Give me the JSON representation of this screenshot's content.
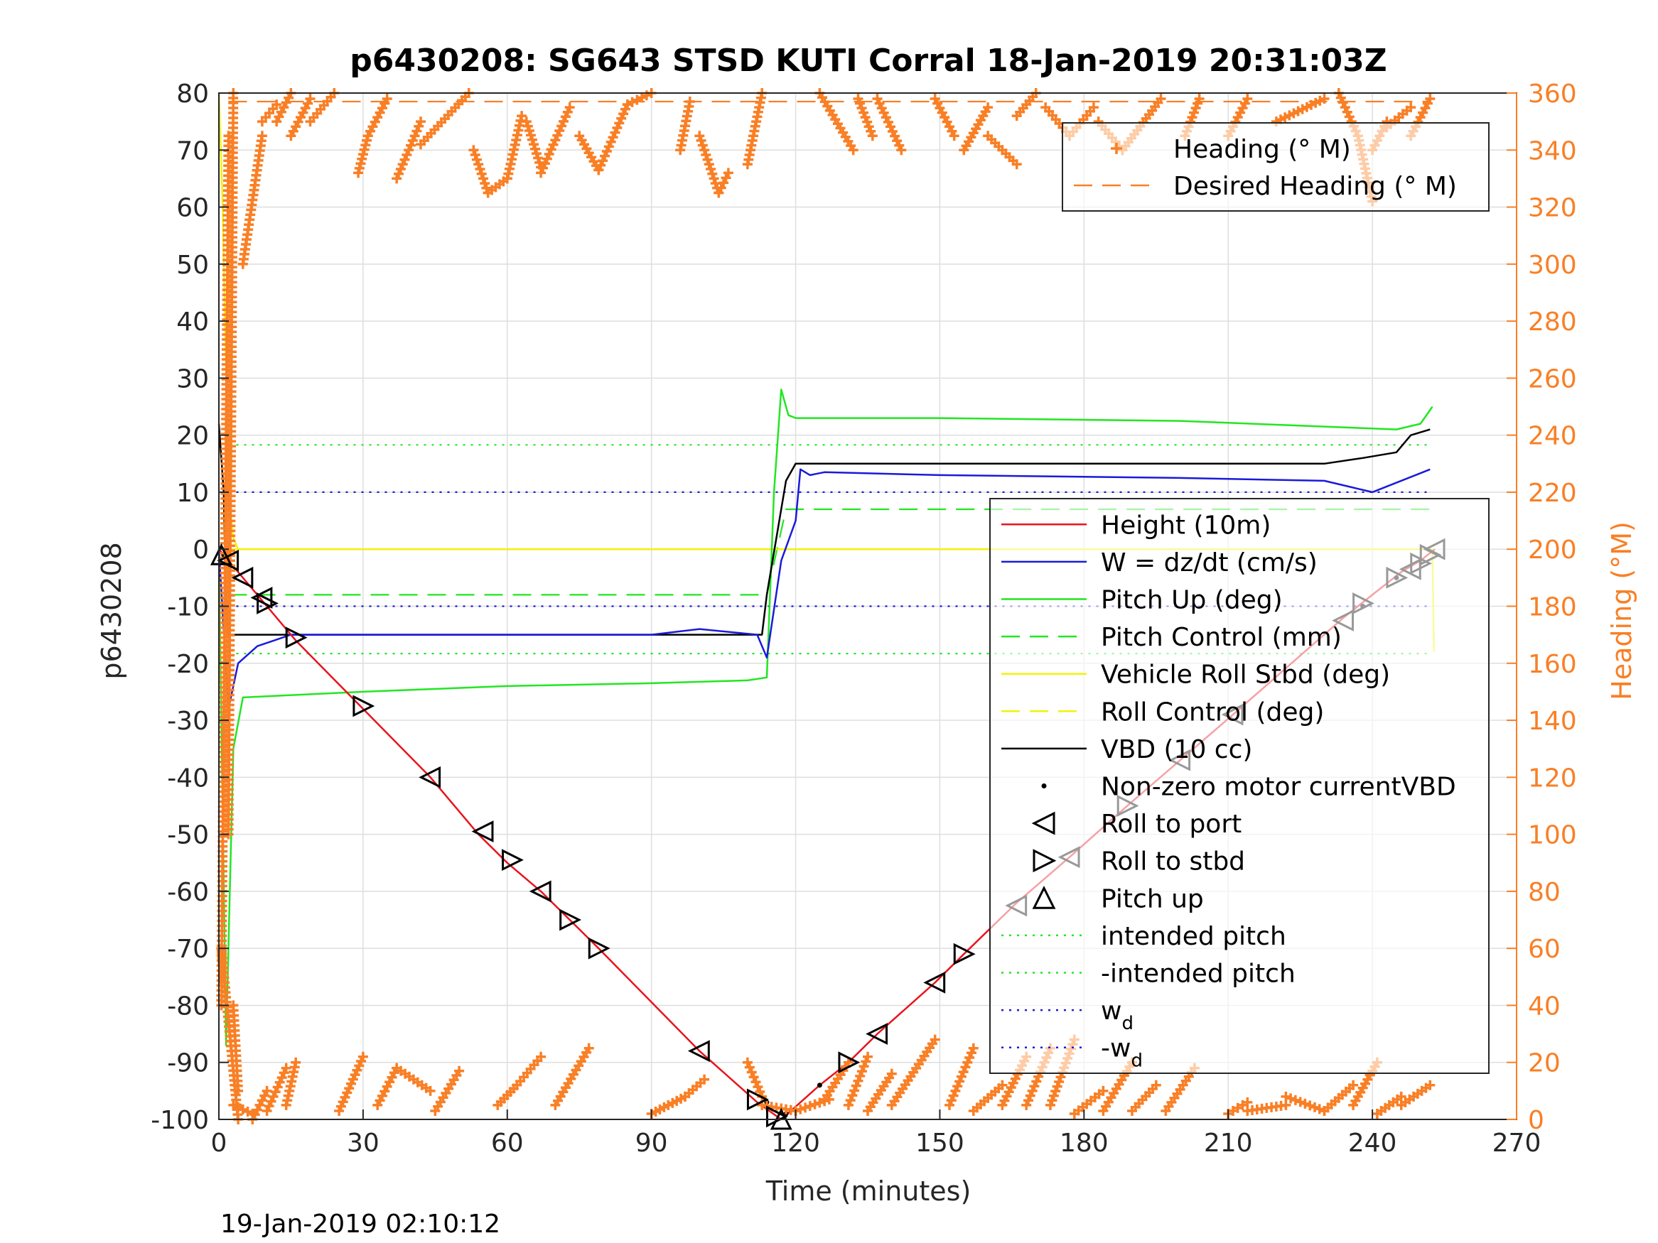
{
  "chart_data": {
    "type": "line",
    "title": "p6430208: SG643 STSD KUTI Corral 18-Jan-2019 20:31:03Z",
    "xlabel": "Time (minutes)",
    "ylabel": "p6430208",
    "y2label": "Heading (°M)",
    "xlim": [
      0,
      270
    ],
    "ylim": [
      -100,
      80
    ],
    "y2lim": [
      0,
      360
    ],
    "xticks": [
      0,
      30,
      60,
      90,
      120,
      150,
      180,
      210,
      240,
      270
    ],
    "yticks": [
      -100,
      -90,
      -80,
      -70,
      -60,
      -50,
      -40,
      -30,
      -20,
      -10,
      0,
      10,
      20,
      30,
      40,
      50,
      60,
      70,
      80
    ],
    "y2ticks": [
      0,
      20,
      40,
      60,
      80,
      100,
      120,
      140,
      160,
      180,
      200,
      220,
      240,
      260,
      280,
      300,
      320,
      340,
      360
    ],
    "grid": true,
    "footer": "19-Jan-2019 02:10:12",
    "colors": {
      "heading": "#f97f25",
      "height": "#e8141e",
      "w": "#1a1adb",
      "pitch": "#22e622",
      "roll": "#f2f20a",
      "vbd": "#000000",
      "axis": "#262626",
      "grid": "#dedede"
    },
    "legend_top": {
      "position": "top-right",
      "entries": [
        {
          "label": "Heading (° M)",
          "style": "plus",
          "color": "#f97f25"
        },
        {
          "label": "Desired Heading (° M)",
          "style": "dash",
          "color": "#f97f25"
        }
      ]
    },
    "legend_main": {
      "position": "right",
      "entries": [
        {
          "label": "Height (10m)",
          "style": "solid",
          "color": "#e8141e"
        },
        {
          "label": "W = dz/dt (cm/s)",
          "style": "solid",
          "color": "#1a1adb"
        },
        {
          "label": "Pitch Up (deg)",
          "style": "solid",
          "color": "#22e622"
        },
        {
          "label": "Pitch Control (mm)",
          "style": "dash",
          "color": "#22e622"
        },
        {
          "label": "Vehicle Roll Stbd (deg)",
          "style": "solid",
          "color": "#f2f20a"
        },
        {
          "label": "Roll Control (deg)",
          "style": "dash",
          "color": "#f2f20a"
        },
        {
          "label": "VBD (10 cc)",
          "style": "solid",
          "color": "#000000"
        },
        {
          "label": "Non-zero motor currentVBD",
          "style": "dot",
          "color": "#000000"
        },
        {
          "label": "Roll to port",
          "style": "tri-left",
          "color": "#000000"
        },
        {
          "label": "Roll to stbd",
          "style": "tri-right",
          "color": "#000000"
        },
        {
          "label": "Pitch up",
          "style": "tri-up",
          "color": "#000000"
        },
        {
          "label": "intended pitch",
          "style": "dotted",
          "color": "#22e622"
        },
        {
          "label": "-intended pitch",
          "style": "dotted",
          "color": "#22e622"
        },
        {
          "label": "w",
          "sub": "d",
          "style": "dotted",
          "color": "#1a1adb"
        },
        {
          "label": "-w",
          "sub": "d",
          "style": "dotted",
          "color": "#1a1adb"
        }
      ]
    },
    "series": [
      {
        "name": "Height (10m)",
        "axis": "left",
        "style": "solid",
        "color": "#e8141e",
        "x": [
          0,
          5,
          16,
          30,
          44,
          54,
          60,
          67,
          73,
          79,
          100,
          112,
          117,
          125,
          131,
          137,
          149,
          155,
          166,
          177,
          189,
          200,
          211,
          234,
          240,
          246,
          250,
          253
        ],
        "y": [
          0,
          -5,
          -16,
          -28,
          -40,
          -50,
          -55,
          -60,
          -65,
          -70,
          -88,
          -97,
          -100,
          -94,
          -90,
          -85,
          -76,
          -71,
          -62,
          -54,
          -45,
          -37,
          -29,
          -12,
          -8,
          -4,
          -2,
          0
        ]
      },
      {
        "name": "W = dz/dt (cm/s)",
        "axis": "left",
        "style": "solid",
        "color": "#1a1adb",
        "x": [
          0,
          2,
          4,
          8,
          15,
          30,
          60,
          90,
          100,
          112,
          114,
          117,
          120,
          121,
          123,
          126,
          150,
          200,
          230,
          240,
          252
        ],
        "y": [
          0,
          -28,
          -20,
          -17,
          -15,
          -15,
          -15,
          -15,
          -14,
          -15,
          -19,
          -2,
          5,
          14,
          13,
          13.5,
          13,
          12.5,
          12,
          10,
          14
        ]
      },
      {
        "name": "Pitch Up (deg)",
        "axis": "left",
        "style": "solid",
        "color": "#22e622",
        "x": [
          0,
          1.5,
          3,
          5,
          30,
          60,
          90,
          110,
          114,
          115.5,
          117,
          118.5,
          120,
          150,
          200,
          245,
          250,
          252.5
        ],
        "y": [
          0,
          -87,
          -35,
          -26,
          -25,
          -24,
          -23.5,
          -23,
          -22.5,
          10,
          28,
          23.5,
          23,
          23,
          22.5,
          21,
          22,
          25
        ]
      },
      {
        "name": "Pitch Control (mm)",
        "axis": "left",
        "style": "dash",
        "color": "#22e622",
        "x": [
          2,
          114,
          118,
          252
        ],
        "y": [
          -8,
          -8,
          7,
          7
        ]
      },
      {
        "name": "Vehicle Roll Stbd (deg)",
        "axis": "left",
        "style": "solid",
        "color": "#f2f20a",
        "x": [
          0,
          0.8,
          2,
          3,
          4,
          6,
          30,
          60,
          90,
          113,
          115,
          118,
          150,
          200,
          230,
          250,
          252.5,
          252.8
        ],
        "y": [
          80,
          60,
          10,
          2,
          0,
          0,
          0,
          0,
          0,
          0,
          0,
          0,
          0,
          0,
          0,
          0,
          0,
          -18
        ]
      },
      {
        "name": "Roll Control (deg)",
        "axis": "left",
        "style": "dash",
        "color": "#f2f20a",
        "x": [
          2,
          252
        ],
        "y": [
          0,
          0
        ]
      },
      {
        "name": "VBD (10 cc)",
        "axis": "left",
        "style": "solid",
        "color": "#000000",
        "x": [
          0,
          1,
          1.5,
          2,
          113,
          114,
          118,
          120,
          150,
          200,
          230,
          238,
          245,
          248,
          252
        ],
        "y": [
          22,
          10,
          -10,
          -15,
          -15,
          -8,
          12,
          15,
          15,
          15,
          15,
          16,
          17,
          20,
          21
        ]
      },
      {
        "name": "intended pitch",
        "axis": "left",
        "style": "dotted",
        "color": "#22e622",
        "x": [
          2,
          252
        ],
        "y": [
          18.3,
          18.3
        ]
      },
      {
        "name": "-intended pitch",
        "axis": "left",
        "style": "dotted",
        "color": "#22e622",
        "x": [
          2,
          252
        ],
        "y": [
          -18.3,
          -18.3
        ]
      },
      {
        "name": "w_d",
        "axis": "left",
        "style": "dotted",
        "color": "#1a1adb",
        "x": [
          2,
          252
        ],
        "y": [
          10,
          10
        ]
      },
      {
        "name": "-w_d",
        "axis": "left",
        "style": "dotted",
        "color": "#1a1adb",
        "x": [
          2,
          252
        ],
        "y": [
          -10,
          -10
        ]
      },
      {
        "name": "Desired Heading (° M)",
        "axis": "right",
        "style": "dash",
        "color": "#f97f25",
        "x": [
          2,
          252
        ],
        "y": [
          357,
          357
        ]
      },
      {
        "name": "Non-zero motor currentVBD",
        "axis": "left",
        "style": "dot",
        "color": "#000000",
        "x": [
          1,
          114,
          118,
          125,
          238,
          245
        ],
        "y": [
          -1,
          -97,
          -99,
          -94,
          -10,
          -5
        ]
      }
    ],
    "heading_segments": [
      {
        "x0": 0.5,
        "x1": 2,
        "y0": 40,
        "y1": 345
      },
      {
        "x0": 2,
        "x1": 3,
        "y0": 100,
        "y1": 360
      },
      {
        "x0": 3,
        "x1": 4,
        "y0": 40,
        "y1": 10
      },
      {
        "x0": 5,
        "x1": 9,
        "y0": 300,
        "y1": 345
      },
      {
        "x0": 9,
        "x1": 12,
        "y0": 350,
        "y1": 356
      },
      {
        "x0": 12,
        "x1": 15,
        "y0": 350,
        "y1": 360
      },
      {
        "x0": 15,
        "x1": 19,
        "y0": 345,
        "y1": 358
      },
      {
        "x0": 19,
        "x1": 24,
        "y0": 350,
        "y1": 360
      },
      {
        "x0": 29,
        "x1": 31,
        "y0": 332,
        "y1": 345
      },
      {
        "x0": 31,
        "x1": 35,
        "y0": 345,
        "y1": 358
      },
      {
        "x0": 37,
        "x1": 42,
        "y0": 330,
        "y1": 350
      },
      {
        "x0": 42,
        "x1": 52,
        "y0": 342,
        "y1": 360
      },
      {
        "x0": 53,
        "x1": 56,
        "y0": 340,
        "y1": 325
      },
      {
        "x0": 56,
        "x1": 60,
        "y0": 325,
        "y1": 330
      },
      {
        "x0": 60,
        "x1": 63,
        "y0": 330,
        "y1": 352
      },
      {
        "x0": 64,
        "x1": 67,
        "y0": 350,
        "y1": 334
      },
      {
        "x0": 67,
        "x1": 73,
        "y0": 332,
        "y1": 355
      },
      {
        "x0": 75,
        "x1": 79,
        "y0": 345,
        "y1": 333
      },
      {
        "x0": 79,
        "x1": 85,
        "y0": 333,
        "y1": 356
      },
      {
        "x0": 85,
        "x1": 90,
        "y0": 356,
        "y1": 360
      },
      {
        "x0": 96,
        "x1": 98,
        "y0": 340,
        "y1": 357
      },
      {
        "x0": 100,
        "x1": 104,
        "y0": 345,
        "y1": 325
      },
      {
        "x0": 104,
        "x1": 106,
        "y0": 325,
        "y1": 332
      },
      {
        "x0": 110,
        "x1": 113,
        "y0": 335,
        "y1": 360
      },
      {
        "x0": 0.5,
        "x1": 4,
        "y0": 60,
        "y1": 0
      },
      {
        "x0": 3,
        "x1": 7,
        "y0": 5,
        "y1": 2
      },
      {
        "x0": 7,
        "x1": 10,
        "y0": 0,
        "y1": 10
      },
      {
        "x0": 10,
        "x1": 14,
        "y0": 3,
        "y1": 18
      },
      {
        "x0": 14,
        "x1": 16,
        "y0": 5,
        "y1": 20
      },
      {
        "x0": 25,
        "x1": 30,
        "y0": 3,
        "y1": 22
      },
      {
        "x0": 33,
        "x1": 37,
        "y0": 5,
        "y1": 18
      },
      {
        "x0": 37,
        "x1": 44,
        "y0": 18,
        "y1": 10
      },
      {
        "x0": 45,
        "x1": 50,
        "y0": 3,
        "y1": 17
      },
      {
        "x0": 58,
        "x1": 62,
        "y0": 5,
        "y1": 12
      },
      {
        "x0": 62,
        "x1": 67,
        "y0": 12,
        "y1": 22
      },
      {
        "x0": 70,
        "x1": 77,
        "y0": 5,
        "y1": 25
      },
      {
        "x0": 90,
        "x1": 97,
        "y0": 2,
        "y1": 8
      },
      {
        "x0": 97,
        "x1": 101,
        "y0": 8,
        "y1": 14
      },
      {
        "x0": 110,
        "x1": 113,
        "y0": 20,
        "y1": 8
      },
      {
        "x0": 113,
        "x1": 120,
        "y0": 5,
        "y1": 3
      },
      {
        "x0": 120,
        "x1": 127,
        "y0": 3,
        "y1": 7
      },
      {
        "x0": 126,
        "x1": 131,
        "y0": 7,
        "y1": 20
      },
      {
        "x0": 131,
        "x1": 135,
        "y0": 5,
        "y1": 22
      },
      {
        "x0": 135,
        "x1": 140,
        "y0": 3,
        "y1": 16
      },
      {
        "x0": 140,
        "x1": 149,
        "y0": 5,
        "y1": 28
      },
      {
        "x0": 152,
        "x1": 157,
        "y0": 5,
        "y1": 25
      },
      {
        "x0": 157,
        "x1": 163,
        "y0": 3,
        "y1": 12
      },
      {
        "x0": 163,
        "x1": 168,
        "y0": 5,
        "y1": 22
      },
      {
        "x0": 168,
        "x1": 173,
        "y0": 5,
        "y1": 25
      },
      {
        "x0": 173,
        "x1": 178,
        "y0": 5,
        "y1": 28
      },
      {
        "x0": 178,
        "x1": 184,
        "y0": 2,
        "y1": 10
      },
      {
        "x0": 184,
        "x1": 190,
        "y0": 3,
        "y1": 20
      },
      {
        "x0": 190,
        "x1": 195,
        "y0": 3,
        "y1": 12
      },
      {
        "x0": 197,
        "x1": 203,
        "y0": 3,
        "y1": 18
      },
      {
        "x0": 210,
        "x1": 214,
        "y0": 2,
        "y1": 6
      },
      {
        "x0": 214,
        "x1": 222,
        "y0": 3,
        "y1": 5
      },
      {
        "x0": 222,
        "x1": 230,
        "y0": 8,
        "y1": 3
      },
      {
        "x0": 230,
        "x1": 236,
        "y0": 3,
        "y1": 12
      },
      {
        "x0": 236,
        "x1": 241,
        "y0": 5,
        "y1": 20
      },
      {
        "x0": 241,
        "x1": 246,
        "y0": 2,
        "y1": 8
      },
      {
        "x0": 246,
        "x1": 252,
        "y0": 5,
        "y1": 12
      },
      {
        "x0": 125,
        "x1": 132,
        "y0": 360,
        "y1": 340
      },
      {
        "x0": 133,
        "x1": 136,
        "y0": 358,
        "y1": 345
      },
      {
        "x0": 137,
        "x1": 142,
        "y0": 358,
        "y1": 340
      },
      {
        "x0": 149,
        "x1": 153,
        "y0": 358,
        "y1": 345
      },
      {
        "x0": 155,
        "x1": 160,
        "y0": 340,
        "y1": 355
      },
      {
        "x0": 160,
        "x1": 166,
        "y0": 345,
        "y1": 335
      },
      {
        "x0": 166,
        "x1": 170,
        "y0": 352,
        "y1": 360
      },
      {
        "x0": 172,
        "x1": 177,
        "y0": 355,
        "y1": 345
      },
      {
        "x0": 177,
        "x1": 182,
        "y0": 345,
        "y1": 355
      },
      {
        "x0": 183,
        "x1": 188,
        "y0": 350,
        "y1": 340
      },
      {
        "x0": 188,
        "x1": 196,
        "y0": 340,
        "y1": 358
      },
      {
        "x0": 201,
        "x1": 204,
        "y0": 345,
        "y1": 358
      },
      {
        "x0": 210,
        "x1": 214,
        "y0": 345,
        "y1": 358
      },
      {
        "x0": 220,
        "x1": 230,
        "y0": 350,
        "y1": 358
      },
      {
        "x0": 233,
        "x1": 237,
        "y0": 360,
        "y1": 345
      },
      {
        "x0": 237,
        "x1": 240,
        "y0": 345,
        "y1": 322
      },
      {
        "x0": 240,
        "x1": 243,
        "y0": 340,
        "y1": 350
      },
      {
        "x0": 243,
        "x1": 248,
        "y0": 348,
        "y1": 355
      },
      {
        "x0": 248,
        "x1": 252,
        "y0": 345,
        "y1": 358
      }
    ],
    "markers": [
      {
        "x": 0.5,
        "y": -1,
        "type": "up"
      },
      {
        "x": 2,
        "y": -2,
        "type": "port"
      },
      {
        "x": 5,
        "y": -5,
        "type": "port"
      },
      {
        "x": 9,
        "y": -8.5,
        "type": "port"
      },
      {
        "x": 10,
        "y": -9.5,
        "type": "stbd"
      },
      {
        "x": 16,
        "y": -15.5,
        "type": "stbd"
      },
      {
        "x": 30,
        "y": -27.5,
        "type": "stbd"
      },
      {
        "x": 44,
        "y": -40,
        "type": "port"
      },
      {
        "x": 55,
        "y": -49.5,
        "type": "port"
      },
      {
        "x": 61,
        "y": -54.5,
        "type": "stbd"
      },
      {
        "x": 67,
        "y": -60,
        "type": "port"
      },
      {
        "x": 73,
        "y": -65,
        "type": "stbd"
      },
      {
        "x": 79,
        "y": -70,
        "type": "stbd"
      },
      {
        "x": 100,
        "y": -88,
        "type": "port"
      },
      {
        "x": 112,
        "y": -96.5,
        "type": "stbd"
      },
      {
        "x": 116,
        "y": -99.5,
        "type": "stbd"
      },
      {
        "x": 117,
        "y": -100,
        "type": "up"
      },
      {
        "x": 131,
        "y": -90,
        "type": "stbd"
      },
      {
        "x": 137,
        "y": -85,
        "type": "port"
      },
      {
        "x": 149,
        "y": -76,
        "type": "port"
      },
      {
        "x": 155,
        "y": -71,
        "type": "stbd"
      },
      {
        "x": 166,
        "y": -62.5,
        "type": "port"
      },
      {
        "x": 177,
        "y": -54,
        "type": "port"
      },
      {
        "x": 189,
        "y": -45,
        "type": "stbd"
      },
      {
        "x": 200,
        "y": -37,
        "type": "port"
      },
      {
        "x": 211,
        "y": -29,
        "type": "port"
      },
      {
        "x": 234,
        "y": -12.5,
        "type": "port"
      },
      {
        "x": 238,
        "y": -9.5,
        "type": "stbd"
      },
      {
        "x": 245,
        "y": -5,
        "type": "stbd"
      },
      {
        "x": 248,
        "y": -3.5,
        "type": "port"
      },
      {
        "x": 250,
        "y": -2.5,
        "type": "stbd"
      },
      {
        "x": 252,
        "y": -1,
        "type": "stbd"
      },
      {
        "x": 253,
        "y": 0,
        "type": "port"
      }
    ]
  }
}
